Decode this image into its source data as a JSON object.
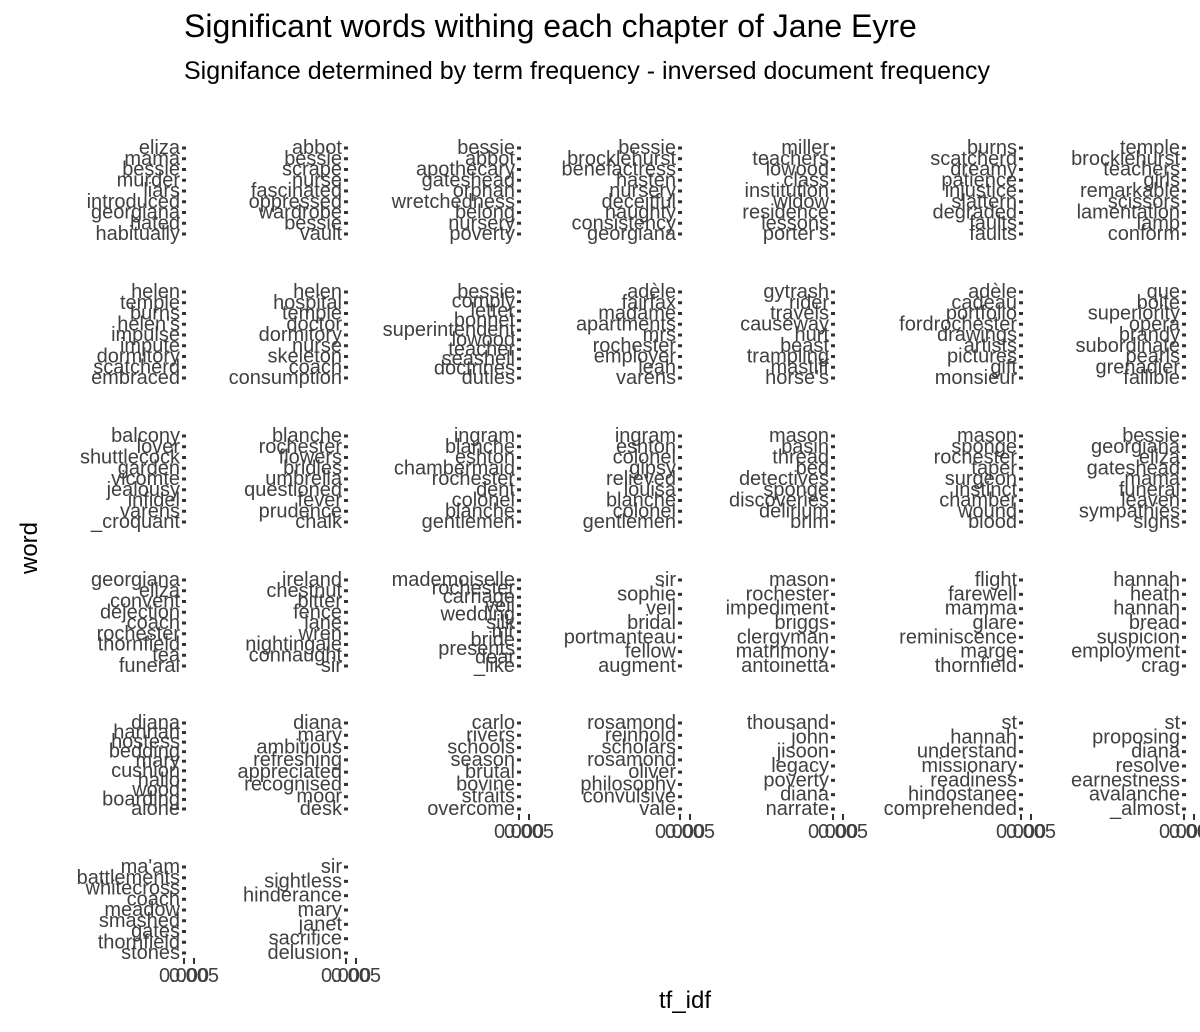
{
  "chart_data": {
    "type": "bar",
    "orientation": "horizontal",
    "facet_layout": "wrap",
    "title": "Significant words withing each chapter of Jane Eyre",
    "subtitle": "Signifance determined by term frequency - inversed document frequency",
    "xlabel": "tf_idf",
    "ylabel": "word",
    "x_tick_labels": [
      "0.000",
      "0.005"
    ],
    "x_ticks": [
      0,
      0.005
    ],
    "facets": [
      {
        "words": [
          "eliza",
          "mama",
          "bessie",
          "murder",
          "liars",
          "introduced",
          "georgiana",
          "hated",
          "habitually"
        ]
      },
      {
        "words": [
          "abbot",
          "bessie",
          "scrape",
          "nurse",
          "fascinated",
          "oppressed",
          "wardrobe",
          "bessie",
          "vault"
        ]
      },
      {
        "words": [
          "bessie",
          "abbot",
          "apothecary",
          "gateshead",
          "orphan",
          "wretchedness",
          "belong",
          "nursery",
          "poverty"
        ]
      },
      {
        "words": [
          "bessie",
          "brocklehurst",
          "benefactress",
          "hasten",
          "nursery",
          "deceitful",
          "naughty",
          "consistency",
          "georgiana"
        ]
      },
      {
        "words": [
          "miller",
          "teachers",
          "lowood",
          "class",
          "institution",
          "widow",
          "residence",
          "lessons",
          "porter's"
        ]
      },
      {
        "words": [
          "burns",
          "scatcherd",
          "dreamy",
          "patience",
          "injustice",
          "slattern",
          "degraded",
          "faults",
          "faults"
        ]
      },
      {
        "words": [
          "temple",
          "brocklehurst",
          "teachers",
          "girls",
          "remarkable",
          "scissors",
          "lamentation",
          "lamp",
          "conform"
        ]
      },
      {
        "words": [
          "helen",
          "temple",
          "burns",
          "helen's",
          "impulse",
          "impute",
          "dormitory",
          "scatcherd",
          "embraced"
        ]
      },
      {
        "words": [
          "helen",
          "hospital",
          "temple",
          "doctor",
          "dormitory",
          "nurse",
          "skeleton",
          "coach",
          "consumption"
        ]
      },
      {
        "words": [
          "bessie",
          "comply",
          "letter",
          "bonnet",
          "superintendent",
          "lowood",
          "teacher",
          "seashell",
          "doctrines",
          "duties"
        ]
      },
      {
        "words": [
          "adèle",
          "fairfax",
          "madame",
          "apartments",
          "mrs",
          "rochester",
          "employer",
          "leah",
          "varens"
        ]
      },
      {
        "words": [
          "gytrash",
          "rider",
          "travels",
          "causeway",
          "hurt",
          "beast",
          "trampling",
          "mastiff",
          "horse's"
        ]
      },
      {
        "words": [
          "adèle",
          "cadeau",
          "portfolio",
          "fordrochester",
          "drawings",
          "artists",
          "pictures",
          "gift",
          "monsieur"
        ]
      },
      {
        "words": [
          "que",
          "boite",
          "superiority",
          "opera",
          "brandy",
          "subordinate",
          "pearls",
          "grenadier",
          "fallible"
        ]
      },
      {
        "words": [
          "balcony",
          "lover",
          "shuttlecock",
          "garden",
          "vicomte",
          "jealousy",
          "infidel",
          "varens",
          "_croquant"
        ]
      },
      {
        "words": [
          "blanche",
          "rochester",
          "flowers",
          "bridles",
          "umbrella",
          "questioned",
          "fever",
          "prudence",
          "chalk"
        ]
      },
      {
        "words": [
          "ingram",
          "blanche",
          "eshton",
          "chambermaid",
          "rochester",
          "dent",
          "colonel",
          "blanche",
          "gentlemen"
        ]
      },
      {
        "words": [
          "ingram",
          "eshton",
          "colonel",
          "gipsy",
          "relieved",
          "louisa",
          "blanche",
          "colonel",
          "gentlemen"
        ]
      },
      {
        "words": [
          "mason",
          "basin",
          "thread",
          "bed",
          "detectives",
          "sponge",
          "discoveries",
          "delirium",
          "brim"
        ]
      },
      {
        "words": [
          "mason",
          "sponge",
          "rochester",
          "taper",
          "surgeon",
          "instinct",
          "chamber",
          "wound",
          "blood"
        ]
      },
      {
        "words": [
          "bessie",
          "georgiana",
          "eliza",
          "gateshead",
          "mama",
          "funeral",
          "leaven",
          "sympathies",
          "signs"
        ]
      },
      {
        "words": [
          "georgiana",
          "eliza",
          "convent",
          "dejection",
          "coach",
          "rochester",
          "thornfield",
          "tea",
          "funeral"
        ]
      },
      {
        "words": [
          "ireland",
          "chestnut",
          "bitter",
          "fence",
          "lane",
          "wren",
          "nightingale",
          "connaught",
          "sir"
        ]
      },
      {
        "words": [
          "mademoiselle",
          "rochester",
          "carriage",
          "veil",
          "wedding",
          "silk",
          "mr",
          "bride",
          "presents",
          "dear",
          "_like"
        ]
      },
      {
        "words": [
          "sir",
          "sophie",
          "veil",
          "bridal",
          "portmanteau",
          "fellow",
          "augment"
        ]
      },
      {
        "words": [
          "mason",
          "rochester",
          "impediment",
          "briggs",
          "clergyman",
          "matrimony",
          "antoinetta"
        ]
      },
      {
        "words": [
          "flight",
          "farewell",
          "mamma",
          "glare",
          "reminiscence",
          "marge",
          "thornfield"
        ]
      },
      {
        "words": [
          "hannah",
          "heath",
          "hannah",
          "bread",
          "suspicion",
          "employment",
          "crag"
        ]
      },
      {
        "words": [
          "diana",
          "hannah",
          "hostess",
          "bedding",
          "mary",
          "cushion",
          "hallo",
          "wood",
          "boarding",
          "alone"
        ]
      },
      {
        "words": [
          "diana",
          "mary",
          "ambitious",
          "refreshing",
          "appreciated",
          "recognised",
          "moor",
          "desk"
        ]
      },
      {
        "words": [
          "carlo",
          "rivers",
          "schools",
          "season",
          "brutal",
          "bovine",
          "straits",
          "overcome"
        ]
      },
      {
        "words": [
          "rosamond",
          "reinhold",
          "scholars",
          "rosamond",
          "oliver",
          "philosophy",
          "convulsive",
          "vale"
        ]
      },
      {
        "words": [
          "thousand",
          "john",
          "jisoon",
          "legacy",
          "poverty",
          "diana",
          "narrate"
        ]
      },
      {
        "words": [
          "st",
          "hannah",
          "understand",
          "missionary",
          "readiness",
          "hindostanee",
          "comprehended"
        ]
      },
      {
        "words": [
          "st",
          "proposing",
          "diana",
          "resolve",
          "earnestness",
          "avalanche",
          "_almost"
        ]
      },
      {
        "words": [
          "ma'am",
          "battlements",
          "whitecross",
          "coach",
          "meadow",
          "smashed",
          "gates",
          "thornfield",
          "stones"
        ]
      },
      {
        "words": [
          "sir",
          "sightless",
          "hinderance",
          "mary",
          "janet",
          "sacrifice",
          "delusion"
        ]
      }
    ]
  }
}
